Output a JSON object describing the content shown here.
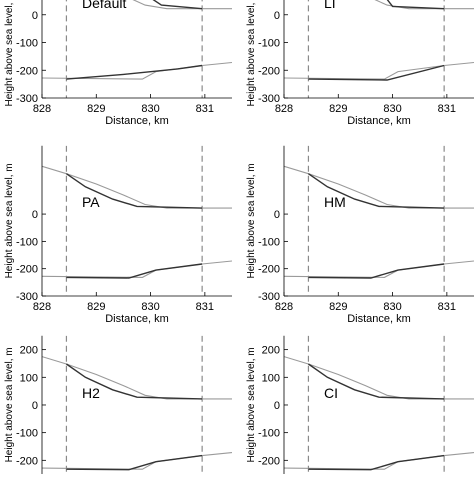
{
  "chart_data": [
    {
      "type": "line",
      "panel_label": "Default",
      "xlabel": "Distance, km",
      "ylabel": "Height above sea level, m",
      "xlim": [
        828,
        831.5
      ],
      "ylim": [
        -300,
        250
      ],
      "xticks": [
        828,
        829,
        830,
        831
      ],
      "yticks": [
        -300,
        -200,
        -100,
        0
      ],
      "dashed_x": [
        828.45,
        830.95
      ],
      "series": [
        {
          "color": "#9a9a9a",
          "points": [
            [
              828,
              175
            ],
            [
              828.45,
              148
            ],
            [
              829,
              110
            ],
            [
              829.5,
              70
            ],
            [
              829.9,
              35
            ],
            [
              830.3,
              22
            ],
            [
              830.95,
              22
            ],
            [
              831.5,
              22
            ]
          ]
        },
        {
          "color": "#333333",
          "points": [
            [
              829.5,
              250
            ],
            [
              829.7,
              100
            ],
            [
              830.2,
              35
            ],
            [
              830.95,
              22
            ]
          ]
        },
        {
          "color": "#9a9a9a",
          "points": [
            [
              828,
              -228
            ],
            [
              829.85,
              -232
            ],
            [
              830.1,
              -205
            ],
            [
              830.95,
              -183
            ],
            [
              831.5,
              -172
            ]
          ]
        },
        {
          "color": "#333333",
          "points": [
            [
              828.45,
              -232
            ],
            [
              829.5,
              -215
            ],
            [
              830.5,
              -195
            ],
            [
              830.95,
              -183
            ]
          ]
        }
      ]
    },
    {
      "type": "line",
      "panel_label": "LI",
      "xlabel": "Distance, km",
      "ylabel": "Height above sea level, m",
      "xlim": [
        828,
        831.5
      ],
      "ylim": [
        -300,
        250
      ],
      "xticks": [
        828,
        829,
        830,
        831
      ],
      "yticks": [
        -300,
        -200,
        -100,
        0
      ],
      "dashed_x": [
        828.45,
        830.95
      ],
      "series": [
        {
          "color": "#9a9a9a",
          "points": [
            [
              828,
              175
            ],
            [
              828.45,
              148
            ],
            [
              829,
              110
            ],
            [
              829.5,
              70
            ],
            [
              829.9,
              35
            ],
            [
              830.3,
              22
            ],
            [
              830.95,
              22
            ],
            [
              831.5,
              22
            ]
          ]
        },
        {
          "color": "#333333",
          "points": [
            [
              829.6,
              130
            ],
            [
              830.0,
              30
            ],
            [
              830.95,
              22
            ]
          ]
        },
        {
          "color": "#9a9a9a",
          "points": [
            [
              828,
              -228
            ],
            [
              829.85,
              -232
            ],
            [
              830.1,
              -205
            ],
            [
              830.95,
              -183
            ],
            [
              831.5,
              -172
            ]
          ]
        },
        {
          "color": "#333333",
          "points": [
            [
              828.45,
              -232
            ],
            [
              829.9,
              -235
            ],
            [
              830.95,
              -183
            ]
          ]
        }
      ]
    },
    {
      "type": "line",
      "panel_label": "PA",
      "xlabel": "Distance, km",
      "ylabel": "Height above sea level, m",
      "xlim": [
        828,
        831.5
      ],
      "ylim": [
        -300,
        250
      ],
      "xticks": [
        828,
        829,
        830,
        831
      ],
      "yticks": [
        -300,
        -200,
        -100,
        0
      ],
      "dashed_x": [
        828.45,
        830.95
      ],
      "series": [
        {
          "color": "#9a9a9a",
          "points": [
            [
              828,
              175
            ],
            [
              828.45,
              148
            ],
            [
              829,
              110
            ],
            [
              829.5,
              70
            ],
            [
              829.9,
              35
            ],
            [
              830.3,
              22
            ],
            [
              830.95,
              22
            ],
            [
              831.5,
              22
            ]
          ]
        },
        {
          "color": "#333333",
          "points": [
            [
              828.45,
              148
            ],
            [
              828.8,
              100
            ],
            [
              829.3,
              55
            ],
            [
              829.75,
              28
            ],
            [
              830.95,
              22
            ]
          ]
        },
        {
          "color": "#9a9a9a",
          "points": [
            [
              828,
              -228
            ],
            [
              829.85,
              -232
            ],
            [
              830.1,
              -205
            ],
            [
              830.95,
              -183
            ],
            [
              831.5,
              -172
            ]
          ]
        },
        {
          "color": "#333333",
          "points": [
            [
              828.45,
              -232
            ],
            [
              829.6,
              -234
            ],
            [
              830.1,
              -205
            ],
            [
              830.95,
              -183
            ]
          ]
        }
      ]
    },
    {
      "type": "line",
      "panel_label": "HM",
      "xlabel": "Distance, km",
      "ylabel": "Height above sea level, m",
      "xlim": [
        828,
        831.5
      ],
      "ylim": [
        -300,
        250
      ],
      "xticks": [
        828,
        829,
        830,
        831
      ],
      "yticks": [
        -300,
        -200,
        -100,
        0
      ],
      "dashed_x": [
        828.45,
        830.95
      ],
      "series": [
        {
          "color": "#9a9a9a",
          "points": [
            [
              828,
              175
            ],
            [
              828.45,
              148
            ],
            [
              829,
              110
            ],
            [
              829.5,
              70
            ],
            [
              829.9,
              35
            ],
            [
              830.3,
              22
            ],
            [
              830.95,
              22
            ],
            [
              831.5,
              22
            ]
          ]
        },
        {
          "color": "#333333",
          "points": [
            [
              828.45,
              148
            ],
            [
              828.8,
              100
            ],
            [
              829.3,
              55
            ],
            [
              829.75,
              28
            ],
            [
              830.95,
              22
            ]
          ]
        },
        {
          "color": "#9a9a9a",
          "points": [
            [
              828,
              -228
            ],
            [
              829.85,
              -232
            ],
            [
              830.1,
              -205
            ],
            [
              830.95,
              -183
            ],
            [
              831.5,
              -172
            ]
          ]
        },
        {
          "color": "#333333",
          "points": [
            [
              828.45,
              -232
            ],
            [
              829.6,
              -234
            ],
            [
              830.1,
              -205
            ],
            [
              830.95,
              -183
            ]
          ]
        }
      ]
    },
    {
      "type": "line",
      "panel_label": "H2",
      "xlabel": "",
      "ylabel": "Height above sea level, m",
      "xlim": [
        828,
        831.5
      ],
      "ylim": [
        -300,
        250
      ],
      "xticks": [],
      "yticks": [
        -200,
        -100,
        0,
        100,
        200
      ],
      "dashed_x": [
        828.45,
        830.95
      ],
      "series": [
        {
          "color": "#9a9a9a",
          "points": [
            [
              828,
              175
            ],
            [
              828.45,
              148
            ],
            [
              829,
              110
            ],
            [
              829.5,
              70
            ],
            [
              829.9,
              35
            ],
            [
              830.3,
              22
            ],
            [
              830.95,
              22
            ],
            [
              831.5,
              22
            ]
          ]
        },
        {
          "color": "#333333",
          "points": [
            [
              828.45,
              148
            ],
            [
              828.8,
              100
            ],
            [
              829.3,
              55
            ],
            [
              829.75,
              28
            ],
            [
              830.95,
              22
            ]
          ]
        },
        {
          "color": "#9a9a9a",
          "points": [
            [
              828,
              -228
            ],
            [
              829.85,
              -232
            ],
            [
              830.1,
              -205
            ],
            [
              830.95,
              -183
            ],
            [
              831.5,
              -172
            ]
          ]
        },
        {
          "color": "#333333",
          "points": [
            [
              828.45,
              -232
            ],
            [
              829.6,
              -234
            ],
            [
              830.1,
              -205
            ],
            [
              830.95,
              -183
            ]
          ]
        }
      ]
    },
    {
      "type": "line",
      "panel_label": "CI",
      "xlabel": "",
      "ylabel": "Height above sea level, m",
      "xlim": [
        828,
        831.5
      ],
      "ylim": [
        -300,
        250
      ],
      "xticks": [],
      "yticks": [
        -200,
        -100,
        0,
        100,
        200
      ],
      "dashed_x": [
        828.45,
        830.95
      ],
      "series": [
        {
          "color": "#9a9a9a",
          "points": [
            [
              828,
              175
            ],
            [
              828.45,
              148
            ],
            [
              829,
              110
            ],
            [
              829.5,
              70
            ],
            [
              829.9,
              35
            ],
            [
              830.3,
              22
            ],
            [
              830.95,
              22
            ],
            [
              831.5,
              22
            ]
          ]
        },
        {
          "color": "#333333",
          "points": [
            [
              828.45,
              148
            ],
            [
              828.8,
              100
            ],
            [
              829.3,
              55
            ],
            [
              829.75,
              28
            ],
            [
              830.95,
              22
            ]
          ]
        },
        {
          "color": "#9a9a9a",
          "points": [
            [
              828,
              -228
            ],
            [
              829.85,
              -232
            ],
            [
              830.1,
              -205
            ],
            [
              830.95,
              -183
            ],
            [
              831.5,
              -172
            ]
          ]
        },
        {
          "color": "#333333",
          "points": [
            [
              828.45,
              -232
            ],
            [
              829.6,
              -234
            ],
            [
              830.1,
              -205
            ],
            [
              830.95,
              -183
            ]
          ]
        }
      ]
    }
  ]
}
